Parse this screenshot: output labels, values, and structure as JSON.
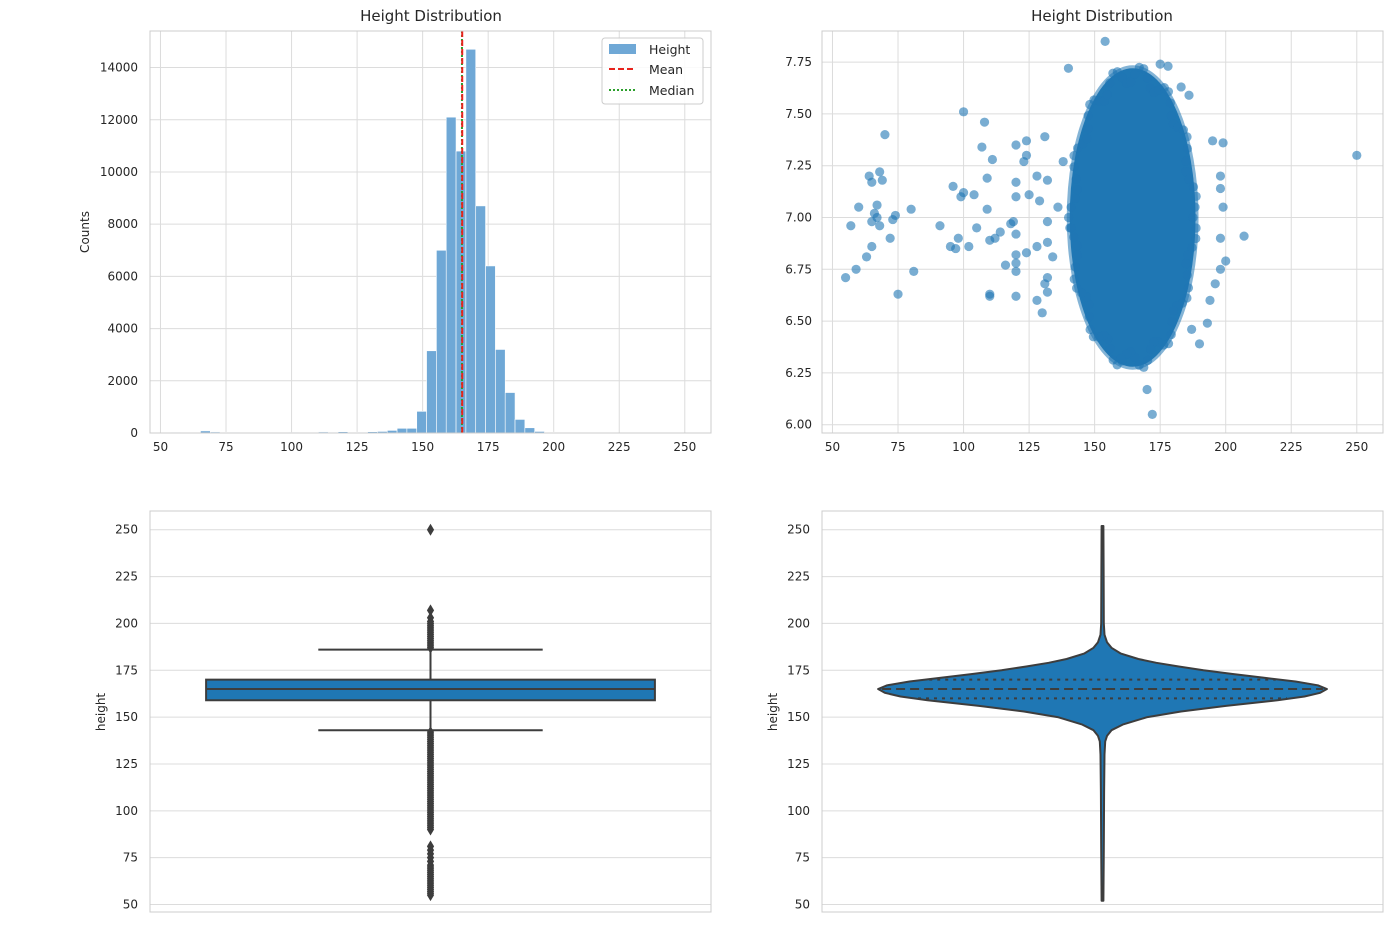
{
  "colors": {
    "primary": "#1f77b4",
    "hist": "#6fa8d6",
    "mean": "#e8231d",
    "median": "#2ca02c",
    "dark": "#3d3d3d",
    "grid": "#dcdcdc",
    "frame": "#cccccc"
  },
  "chart_data": [
    {
      "id": "hist",
      "type": "bar",
      "title": "Height Distribution",
      "xlabel": "",
      "ylabel": "Counts",
      "xlim": [
        46,
        260
      ],
      "ylim": [
        0,
        15400
      ],
      "xticks": [
        50,
        75,
        100,
        125,
        150,
        175,
        200,
        225,
        250
      ],
      "yticks": [
        0,
        2000,
        4000,
        6000,
        8000,
        10000,
        12000,
        14000
      ],
      "bin_width": 3.75,
      "bins": [
        {
          "x0": 54.0,
          "count": 20
        },
        {
          "x0": 61.5,
          "count": 30
        },
        {
          "x0": 65.25,
          "count": 80
        },
        {
          "x0": 69.0,
          "count": 40
        },
        {
          "x0": 72.75,
          "count": 30
        },
        {
          "x0": 76.5,
          "count": 20
        },
        {
          "x0": 91.5,
          "count": 10
        },
        {
          "x0": 99.0,
          "count": 20
        },
        {
          "x0": 106.5,
          "count": 30
        },
        {
          "x0": 110.25,
          "count": 40
        },
        {
          "x0": 114.0,
          "count": 20
        },
        {
          "x0": 117.75,
          "count": 50
        },
        {
          "x0": 121.5,
          "count": 30
        },
        {
          "x0": 125.25,
          "count": 20
        },
        {
          "x0": 129.0,
          "count": 50
        },
        {
          "x0": 132.75,
          "count": 60
        },
        {
          "x0": 136.5,
          "count": 100
        },
        {
          "x0": 140.25,
          "count": 180
        },
        {
          "x0": 144.0,
          "count": 180
        },
        {
          "x0": 147.75,
          "count": 830
        },
        {
          "x0": 151.5,
          "count": 3150
        },
        {
          "x0": 155.25,
          "count": 7000
        },
        {
          "x0": 159.0,
          "count": 12100
        },
        {
          "x0": 162.75,
          "count": 10800
        },
        {
          "x0": 166.5,
          "count": 14700
        },
        {
          "x0": 170.25,
          "count": 8700
        },
        {
          "x0": 174.0,
          "count": 6400
        },
        {
          "x0": 177.75,
          "count": 3200
        },
        {
          "x0": 181.5,
          "count": 1550
        },
        {
          "x0": 185.25,
          "count": 520
        },
        {
          "x0": 189.0,
          "count": 200
        },
        {
          "x0": 192.75,
          "count": 60
        },
        {
          "x0": 196.5,
          "count": 30
        },
        {
          "x0": 200.25,
          "count": 10
        },
        {
          "x0": 249.0,
          "count": 5
        }
      ],
      "mean": 165.1,
      "median": 165.0,
      "legend": {
        "position": "top-right",
        "entries": [
          "Height",
          "Mean",
          "Median"
        ]
      }
    },
    {
      "id": "scatter",
      "type": "scatter",
      "title": "Height Distribution",
      "xlabel": "",
      "ylabel": "",
      "xlim": [
        46,
        260
      ],
      "ylim": [
        5.96,
        7.9
      ],
      "xticks": [
        50,
        75,
        100,
        125,
        150,
        175,
        200,
        225,
        250
      ],
      "yticks": [
        6.0,
        6.25,
        6.5,
        6.75,
        7.0,
        7.25,
        7.5,
        7.75
      ],
      "ytick_labels": [
        "6.00",
        "6.25",
        "6.50",
        "6.75",
        "7.00",
        "7.25",
        "7.50",
        "7.75"
      ],
      "dense_cluster": {
        "x_center": 164.5,
        "x_halfwidth": 24.0,
        "y_center": 7.0,
        "y_halfwidth": 0.72
      },
      "points": [
        [
          55,
          6.71
        ],
        [
          59,
          6.75
        ],
        [
          57,
          6.96
        ],
        [
          60,
          7.05
        ],
        [
          63,
          6.81
        ],
        [
          64,
          7.2
        ],
        [
          65,
          6.86
        ],
        [
          65,
          6.98
        ],
        [
          66,
          7.02
        ],
        [
          65,
          7.17
        ],
        [
          67,
          7.06
        ],
        [
          67,
          7.0
        ],
        [
          68,
          6.96
        ],
        [
          68,
          7.22
        ],
        [
          69,
          7.18
        ],
        [
          70,
          7.4
        ],
        [
          72,
          6.9
        ],
        [
          73,
          6.99
        ],
        [
          74,
          7.01
        ],
        [
          75,
          6.63
        ],
        [
          80,
          7.04
        ],
        [
          81,
          6.74
        ],
        [
          91,
          6.96
        ],
        [
          95,
          6.86
        ],
        [
          96,
          7.15
        ],
        [
          97,
          6.85
        ],
        [
          98,
          6.9
        ],
        [
          99,
          7.1
        ],
        [
          100,
          7.51
        ],
        [
          100,
          7.12
        ],
        [
          102,
          6.86
        ],
        [
          104,
          7.11
        ],
        [
          105,
          6.95
        ],
        [
          107,
          7.34
        ],
        [
          108,
          7.46
        ],
        [
          109,
          7.19
        ],
        [
          109,
          7.04
        ],
        [
          110,
          6.63
        ],
        [
          110,
          6.62
        ],
        [
          110,
          6.89
        ],
        [
          111,
          7.28
        ],
        [
          112,
          6.9
        ],
        [
          114,
          6.93
        ],
        [
          116,
          6.77
        ],
        [
          118,
          6.97
        ],
        [
          119,
          6.98
        ],
        [
          120,
          6.62
        ],
        [
          120,
          6.74
        ],
        [
          120,
          7.35
        ],
        [
          120,
          7.17
        ],
        [
          120,
          7.1
        ],
        [
          120,
          6.78
        ],
        [
          120,
          6.82
        ],
        [
          120,
          6.92
        ],
        [
          123,
          7.27
        ],
        [
          124,
          7.37
        ],
        [
          124,
          6.83
        ],
        [
          124,
          7.3
        ],
        [
          125,
          7.11
        ],
        [
          128,
          6.6
        ],
        [
          128,
          6.86
        ],
        [
          128,
          7.2
        ],
        [
          129,
          7.08
        ],
        [
          130,
          6.54
        ],
        [
          131,
          6.68
        ],
        [
          131,
          7.39
        ],
        [
          132,
          6.98
        ],
        [
          132,
          6.71
        ],
        [
          132,
          6.88
        ],
        [
          132,
          7.18
        ],
        [
          132,
          6.64
        ],
        [
          134,
          6.81
        ],
        [
          136,
          7.05
        ],
        [
          138,
          7.27
        ],
        [
          140,
          7.72
        ],
        [
          141,
          6.95
        ],
        [
          154,
          7.85
        ],
        [
          160,
          6.32
        ],
        [
          170,
          6.17
        ],
        [
          172,
          6.05
        ],
        [
          175,
          7.74
        ],
        [
          178,
          7.73
        ],
        [
          183,
          7.63
        ],
        [
          186,
          7.59
        ],
        [
          187,
          6.46
        ],
        [
          190,
          6.39
        ],
        [
          193,
          6.49
        ],
        [
          194,
          6.6
        ],
        [
          195,
          7.37
        ],
        [
          196,
          6.68
        ],
        [
          198,
          7.2
        ],
        [
          198,
          6.75
        ],
        [
          198,
          7.14
        ],
        [
          199,
          7.05
        ],
        [
          199,
          7.36
        ],
        [
          198,
          6.9
        ],
        [
          200,
          6.79
        ],
        [
          207,
          6.91
        ],
        [
          250,
          7.3
        ]
      ]
    },
    {
      "id": "box",
      "type": "box",
      "title": "",
      "xlabel": "",
      "ylabel": "height",
      "ylim": [
        46,
        260
      ],
      "yticks": [
        50,
        75,
        100,
        125,
        150,
        175,
        200,
        225,
        250
      ],
      "q1": 159,
      "median": 165,
      "q3": 170,
      "whisker_low": 143,
      "whisker_high": 186,
      "outliers": [
        250,
        207,
        203,
        201,
        200,
        199,
        198,
        197,
        196,
        195,
        194,
        193,
        192,
        191,
        190,
        189,
        188,
        187,
        142,
        141,
        140,
        139,
        138,
        137,
        136,
        135,
        134,
        133,
        132,
        131,
        130,
        129,
        128,
        127,
        126,
        125,
        124,
        123,
        122,
        121,
        120,
        119,
        118,
        117,
        116,
        115,
        114,
        113,
        112,
        111,
        110,
        109,
        108,
        107,
        106,
        105,
        104,
        103,
        102,
        101,
        100,
        99,
        98,
        97,
        96,
        95,
        94,
        93,
        92,
        91,
        90,
        81,
        79,
        77,
        75,
        73,
        71,
        70,
        69,
        68,
        67,
        66,
        65,
        64,
        63,
        62,
        61,
        60,
        59,
        58,
        57,
        56,
        55
      ]
    },
    {
      "id": "violin",
      "type": "violin",
      "title": "",
      "xlabel": "",
      "ylabel": "height",
      "ylim": [
        46,
        260
      ],
      "yticks": [
        50,
        75,
        100,
        125,
        150,
        175,
        200,
        225,
        250
      ],
      "range": [
        52,
        252
      ],
      "q1": 160,
      "median": 165,
      "q3": 170,
      "profile": [
        [
          52,
          0.004
        ],
        [
          80,
          0.006
        ],
        [
          110,
          0.007
        ],
        [
          130,
          0.009
        ],
        [
          137,
          0.012
        ],
        [
          140,
          0.02
        ],
        [
          143,
          0.04
        ],
        [
          146,
          0.09
        ],
        [
          150,
          0.2
        ],
        [
          153,
          0.35
        ],
        [
          156,
          0.55
        ],
        [
          159,
          0.78
        ],
        [
          161,
          0.9
        ],
        [
          163,
          0.97
        ],
        [
          165,
          1.0
        ],
        [
          167,
          0.96
        ],
        [
          169,
          0.86
        ],
        [
          171,
          0.72
        ],
        [
          173,
          0.58
        ],
        [
          175,
          0.45
        ],
        [
          177,
          0.34
        ],
        [
          179,
          0.24
        ],
        [
          181,
          0.16
        ],
        [
          184,
          0.08
        ],
        [
          187,
          0.04
        ],
        [
          190,
          0.02
        ],
        [
          194,
          0.009
        ],
        [
          200,
          0.006
        ],
        [
          230,
          0.005
        ],
        [
          252,
          0.004
        ]
      ]
    }
  ]
}
